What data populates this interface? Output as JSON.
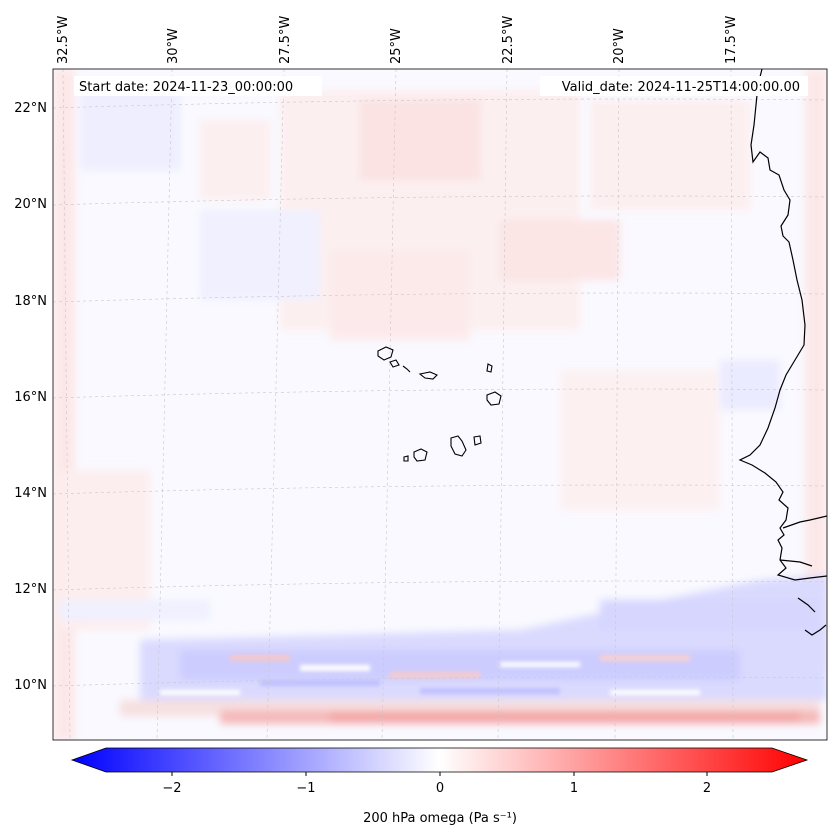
{
  "map": {
    "start_date": "Start date: 2024-11-23_00:00:00",
    "valid_date": "Valid_date: 2024-11-25T14:00:00.00",
    "lon_labels": [
      "32.5°W",
      "30°W",
      "27.5°W",
      "25°W",
      "22.5°W",
      "20°W",
      "17.5°W"
    ],
    "lat_labels": [
      "22°N",
      "20°N",
      "18°N",
      "16°N",
      "14°N",
      "12°N",
      "10°N"
    ]
  },
  "colorbar": {
    "label": "200 hPa omega (Pa s⁻¹)",
    "ticks": [
      "−2",
      "−1",
      "0",
      "1",
      "2"
    ],
    "range": [
      -2.6,
      2.6
    ],
    "colors": {
      "low": "#0000ff",
      "mid": "#ffffff",
      "high": "#ff0000"
    }
  }
}
